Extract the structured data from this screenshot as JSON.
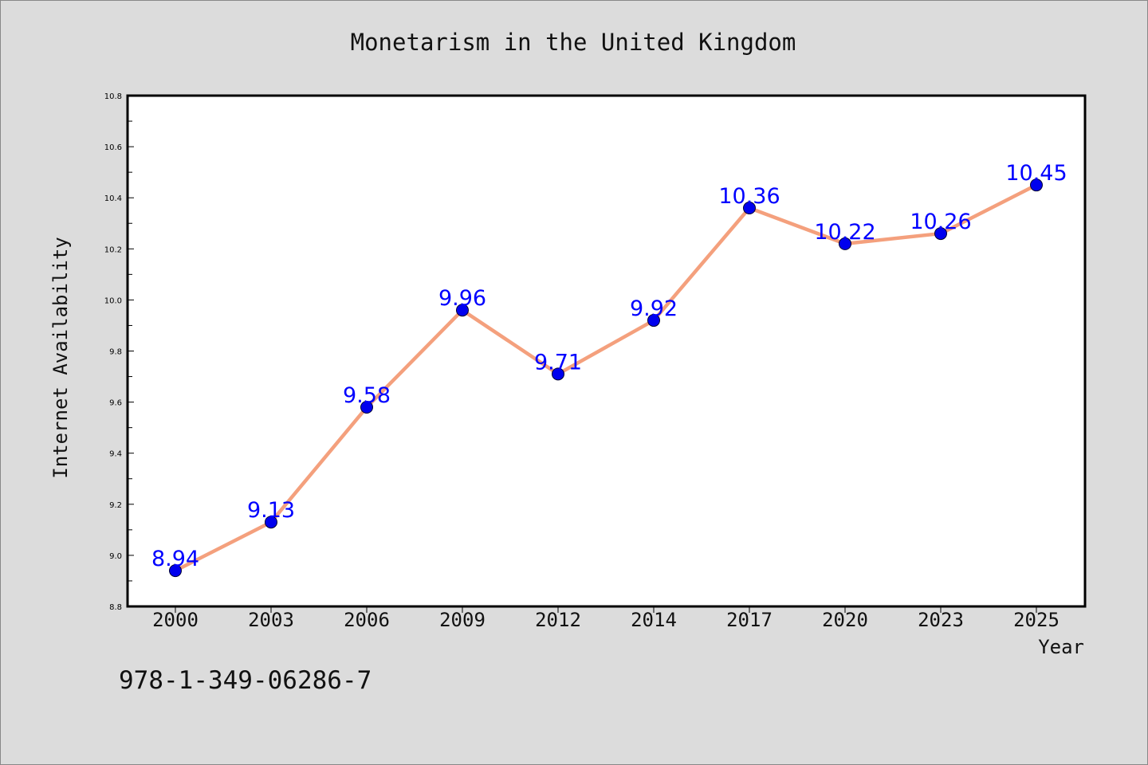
{
  "chart_data": {
    "type": "line",
    "title": "Monetarism in the United Kingdom",
    "xlabel": "Year",
    "ylabel": "Internet Availability",
    "categories": [
      "2000",
      "2003",
      "2006",
      "2009",
      "2012",
      "2014",
      "2017",
      "2020",
      "2023",
      "2025"
    ],
    "series": [
      {
        "name": "",
        "values": [
          8.94,
          9.13,
          9.58,
          9.96,
          9.71,
          9.92,
          10.36,
          10.22,
          10.26,
          10.45
        ]
      }
    ],
    "data_labels": [
      "8.94",
      "9.13",
      "9.58",
      "9.96",
      "9.71",
      "9.92",
      "10.36",
      "10.22",
      "10.26",
      "10.45"
    ],
    "ylim": [
      8.8,
      10.8
    ],
    "yticks": [
      8.8,
      9.0,
      9.2,
      9.4,
      9.6,
      9.8,
      10.0,
      10.2,
      10.4,
      10.6,
      10.8
    ],
    "ytick_labels": [
      "8.8",
      "9.0",
      "9.2",
      "9.4",
      "9.6",
      "9.8",
      "10.0",
      "10.2",
      "10.4",
      "10.6",
      "10.8"
    ],
    "grid": false,
    "legend": "none",
    "line_color": "#f4a07d",
    "marker_color": "#0000ee",
    "label_color": "#0000ff",
    "background_color": "#dcdcdc",
    "plot_background_color": "#ffffff"
  },
  "annotation": {
    "isbn": "978-1-349-06286-7"
  }
}
